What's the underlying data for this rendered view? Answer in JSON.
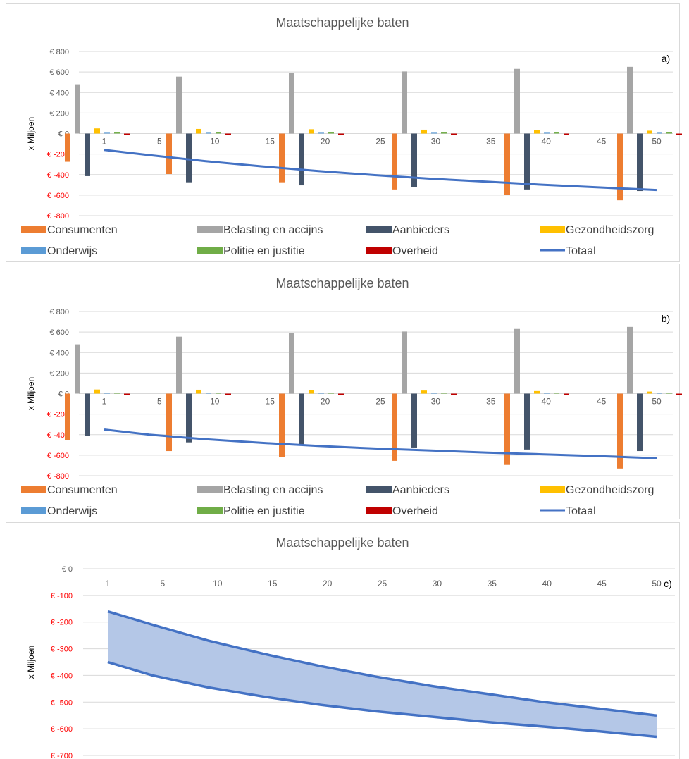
{
  "colors": {
    "Consumenten": "#ED7D31",
    "Belasting en accijns": "#A5A5A5",
    "Aanbieders": "#44546A",
    "Gezondheidszorg": "#FFC000",
    "Onderwijs": "#5B9BD5",
    "Politie en justitie": "#70AD47",
    "Overheid": "#C00000",
    "Totaal": "#4472C4",
    "band_fill": "#B4C7E7",
    "neg_tick": "#FF0000",
    "grid": "#D9D9D9"
  },
  "chart_data": [
    {
      "type": "bar",
      "title": "Maatschappelijke baten",
      "panel_label": "a)",
      "ylabel": "x Miljoen",
      "ylim": [
        -800,
        800
      ],
      "yticks": [
        800,
        600,
        400,
        200,
        0,
        -200,
        -400,
        -600,
        -800
      ],
      "ytick_labels": [
        "€ 800",
        "€ 600",
        "€ 400",
        "€ 200",
        "€ 0",
        "€ -200",
        "€ -400",
        "€ -600",
        "€ -800"
      ],
      "x_ticks": [
        "1",
        "5",
        "10",
        "15",
        "20",
        "25",
        "30",
        "35",
        "40",
        "45",
        "50"
      ],
      "bar_groups_at": [
        "1",
        "10",
        "20",
        "30",
        "40",
        "50"
      ],
      "series": [
        {
          "name": "Consumenten",
          "kind": "bar",
          "values": [
            -275,
            -395,
            -475,
            -545,
            -600,
            -650
          ]
        },
        {
          "name": "Belasting en accijns",
          "kind": "bar",
          "values": [
            480,
            555,
            590,
            605,
            630,
            650
          ]
        },
        {
          "name": "Aanbieders",
          "kind": "bar",
          "values": [
            -415,
            -475,
            -505,
            -525,
            -545,
            -560
          ]
        },
        {
          "name": "Gezondheidszorg",
          "kind": "bar",
          "values": [
            50,
            45,
            42,
            38,
            32,
            28
          ]
        },
        {
          "name": "Onderwijs",
          "kind": "bar",
          "values": [
            8,
            8,
            8,
            8,
            8,
            8
          ]
        },
        {
          "name": "Politie en justitie",
          "kind": "bar",
          "values": [
            10,
            10,
            10,
            10,
            10,
            10
          ]
        },
        {
          "name": "Overheid",
          "kind": "bar",
          "values": [
            -12,
            -12,
            -12,
            -12,
            -12,
            -12
          ]
        },
        {
          "name": "Totaal",
          "kind": "line",
          "x": [
            1,
            5,
            10,
            15,
            20,
            25,
            30,
            35,
            40,
            45,
            50
          ],
          "values": [
            -160,
            -210,
            -270,
            -320,
            -365,
            -405,
            -440,
            -470,
            -500,
            -525,
            -550
          ]
        }
      ],
      "legend": [
        "Consumenten",
        "Belasting en accijns",
        "Aanbieders",
        "Gezondheidszorg",
        "Onderwijs",
        "Politie en justitie",
        "Overheid",
        "Totaal"
      ],
      "legend_position": "bottom",
      "grid": true
    },
    {
      "type": "bar",
      "title": "Maatschappelijke baten",
      "panel_label": "b)",
      "ylabel": "x Miljoen",
      "ylim": [
        -800,
        800
      ],
      "yticks": [
        800,
        600,
        400,
        200,
        0,
        -200,
        -400,
        -600,
        -800
      ],
      "ytick_labels": [
        "€ 800",
        "€ 600",
        "€ 400",
        "€ 200",
        "€ 0",
        "€ -200",
        "€ -400",
        "€ -600",
        "€ -800"
      ],
      "x_ticks": [
        "1",
        "5",
        "10",
        "15",
        "20",
        "25",
        "30",
        "35",
        "40",
        "45",
        "50"
      ],
      "bar_groups_at": [
        "1",
        "10",
        "20",
        "30",
        "40",
        "50"
      ],
      "series": [
        {
          "name": "Consumenten",
          "kind": "bar",
          "values": [
            -450,
            -560,
            -620,
            -655,
            -695,
            -730
          ]
        },
        {
          "name": "Belasting en accijns",
          "kind": "bar",
          "values": [
            480,
            555,
            590,
            605,
            630,
            650
          ]
        },
        {
          "name": "Aanbieders",
          "kind": "bar",
          "values": [
            -415,
            -475,
            -505,
            -525,
            -545,
            -560
          ]
        },
        {
          "name": "Gezondheidszorg",
          "kind": "bar",
          "values": [
            40,
            38,
            32,
            30,
            25,
            20
          ]
        },
        {
          "name": "Onderwijs",
          "kind": "bar",
          "values": [
            8,
            8,
            8,
            8,
            8,
            8
          ]
        },
        {
          "name": "Politie en justitie",
          "kind": "bar",
          "values": [
            10,
            10,
            10,
            10,
            10,
            10
          ]
        },
        {
          "name": "Overheid",
          "kind": "bar",
          "values": [
            -12,
            -12,
            -12,
            -12,
            -12,
            -12
          ]
        },
        {
          "name": "Totaal",
          "kind": "line",
          "x": [
            1,
            5,
            10,
            15,
            20,
            25,
            30,
            35,
            40,
            45,
            50
          ],
          "values": [
            -350,
            -400,
            -445,
            -480,
            -510,
            -535,
            -555,
            -575,
            -592,
            -610,
            -630
          ]
        }
      ],
      "legend": [
        "Consumenten",
        "Belasting en accijns",
        "Aanbieders",
        "Gezondheidszorg",
        "Onderwijs",
        "Politie en justitie",
        "Overheid",
        "Totaal"
      ],
      "legend_position": "bottom",
      "grid": true
    },
    {
      "type": "area",
      "title": "Maatschappelijke baten",
      "panel_label": "c)",
      "ylabel": "x Miljoen",
      "ylim": [
        -700,
        0
      ],
      "yticks": [
        0,
        -100,
        -200,
        -300,
        -400,
        -500,
        -600,
        -700
      ],
      "ytick_labels": [
        "€ 0",
        "€ -100",
        "€ -200",
        "€ -300",
        "€ -400",
        "€ -500",
        "€ -600",
        "€ -700"
      ],
      "x_ticks": [
        "1",
        "5",
        "10",
        "15",
        "20",
        "25",
        "30",
        "35",
        "40",
        "45",
        "50"
      ],
      "x": [
        1,
        5,
        10,
        15,
        20,
        25,
        30,
        35,
        40,
        45,
        50
      ],
      "upper": [
        -160,
        -210,
        -270,
        -320,
        -365,
        -405,
        -440,
        -470,
        -500,
        -525,
        -550
      ],
      "lower": [
        -350,
        -400,
        -445,
        -480,
        -510,
        -535,
        -555,
        -575,
        -592,
        -610,
        -630
      ],
      "grid": true
    }
  ]
}
